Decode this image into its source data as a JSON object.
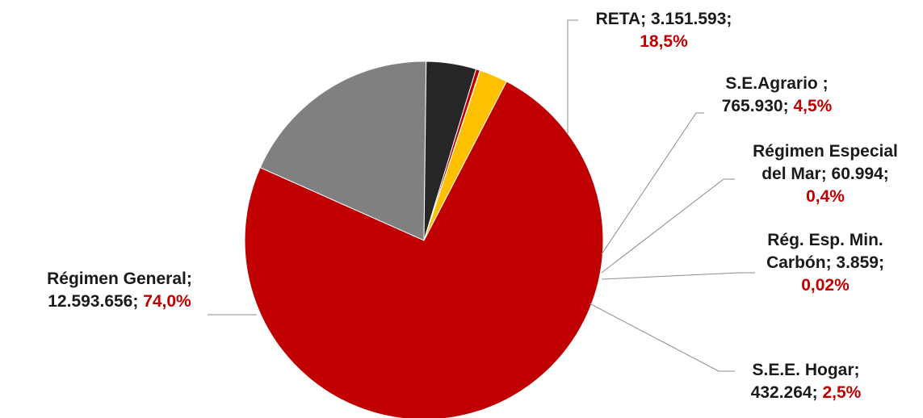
{
  "chart_data": {
    "type": "pie",
    "slices": [
      {
        "name": "RETA",
        "value": 3151593,
        "value_label": "3.151.593",
        "pct_label": "18,5%",
        "color": "#808080"
      },
      {
        "name": "S.E.Agrario",
        "value": 765930,
        "value_label": "765.930",
        "pct_label": "4,5%",
        "color": "#262626"
      },
      {
        "name": "Régimen Especial del Mar",
        "value": 60994,
        "value_label": "60.994",
        "pct_label": "0,4%",
        "color": "#c00000"
      },
      {
        "name": "Rég. Esp. Min. Carbón",
        "value": 3859,
        "value_label": "3.859",
        "pct_label": "0,02%",
        "color": "#7030a0"
      },
      {
        "name": "S.E.E. Hogar",
        "value": 432264,
        "value_label": "432.264",
        "pct_label": "2,5%",
        "color": "#ffc000"
      },
      {
        "name": "Régimen General",
        "value": 12593656,
        "value_label": "12.593.656",
        "pct_label": "74,0%",
        "color": "#c00000"
      }
    ],
    "labels": [
      {
        "lines": [
          [
            {
              "t": "RETA; 3.151.593;",
              "c": "black"
            }
          ],
          [
            {
              "t": "18,5%",
              "c": "pct"
            }
          ]
        ]
      },
      {
        "lines": [
          [
            {
              "t": "S.E.Agrario ;",
              "c": "black"
            }
          ],
          [
            {
              "t": "765.930; ",
              "c": "black"
            },
            {
              "t": "4,5%",
              "c": "pct"
            }
          ]
        ]
      },
      {
        "lines": [
          [
            {
              "t": "Régimen Especial",
              "c": "black"
            }
          ],
          [
            {
              "t": "del Mar; 60.994;",
              "c": "black"
            }
          ],
          [
            {
              "t": "0,4%",
              "c": "pct"
            }
          ]
        ]
      },
      {
        "lines": [
          [
            {
              "t": "Rég.  Esp. Min.",
              "c": "black"
            }
          ],
          [
            {
              "t": "Carbón; 3.859;",
              "c": "black"
            }
          ],
          [
            {
              "t": "0,02%",
              "c": "pct"
            }
          ]
        ]
      },
      {
        "lines": [
          [
            {
              "t": "S.E.E. Hogar;",
              "c": "black"
            }
          ],
          [
            {
              "t": "432.264; ",
              "c": "black"
            },
            {
              "t": "2,5%",
              "c": "pct"
            }
          ]
        ]
      },
      {
        "lines": [
          [
            {
              "t": "Régimen General;",
              "c": "black"
            }
          ],
          [
            {
              "t": "12.593.656; ",
              "c": "black"
            },
            {
              "t": "74,0%",
              "c": "pct"
            }
          ]
        ]
      }
    ]
  }
}
